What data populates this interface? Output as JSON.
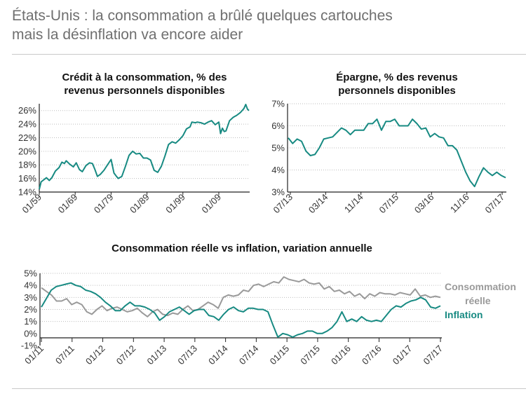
{
  "header": {
    "title_line1": "États-Unis : la consommation a brûlé quelques cartouches",
    "title_line2": "mais la désinflation va encore aider"
  },
  "colors": {
    "teal": "#178a82",
    "grey": "#9a9a9a"
  },
  "chart_data": [
    {
      "type": "line",
      "title_line1": "Crédit à la consommation, % des",
      "title_line2": "revenus personnels disponibles",
      "ylim": [
        14,
        27
      ],
      "y_ticks": [
        14,
        16,
        18,
        20,
        22,
        24,
        26
      ],
      "y_tick_labels": [
        "14%",
        "16%",
        "18%",
        "20%",
        "22%",
        "24%",
        "26%"
      ],
      "x_tick_labels": [
        "01/59",
        "01/69",
        "01/79",
        "01/89",
        "01/99",
        "01/09"
      ],
      "x_tick_years": [
        1959,
        1969,
        1979,
        1989,
        1999,
        2009
      ],
      "xlim": [
        1959,
        2017.6
      ],
      "series": [
        {
          "name": "Crédit à la consommation",
          "color": "#178a82",
          "x": [
            1959,
            1959.5,
            1961,
            1961.8,
            1962.5,
            1963.5,
            1964.5,
            1965.3,
            1966,
            1966.5,
            1967.5,
            1968.5,
            1969.3,
            1970.2,
            1971,
            1972,
            1973,
            1973.8,
            1974.5,
            1975.2,
            1976,
            1977,
            1978,
            1979,
            1979.8,
            1980.5,
            1981,
            1982,
            1983,
            1984,
            1985,
            1986,
            1987,
            1988,
            1989,
            1990,
            1991,
            1992,
            1993,
            1994,
            1995,
            1996,
            1997,
            1998,
            1999,
            2000,
            2001,
            2001.5,
            2002.5,
            2003,
            2004,
            2005,
            2006,
            2007,
            2008,
            2009,
            2009.5,
            2010,
            2010.5,
            2011,
            2012,
            2013,
            2014,
            2015,
            2016,
            2016.5,
            2017,
            2017.4
          ],
          "values": [
            14.4,
            15.5,
            16.1,
            15.7,
            16.1,
            17.1,
            17.6,
            18.4,
            18.2,
            18.6,
            18.1,
            17.7,
            18.3,
            17.3,
            17.0,
            17.9,
            18.3,
            18.2,
            17.3,
            16.3,
            16.6,
            17.2,
            18.0,
            18.8,
            16.8,
            16.3,
            16.0,
            16.3,
            17.8,
            19.4,
            20.0,
            19.6,
            19.7,
            19.0,
            19.0,
            18.7,
            17.2,
            16.9,
            17.8,
            19.3,
            21.0,
            21.4,
            21.2,
            21.7,
            22.3,
            23.3,
            23.6,
            24.3,
            24.2,
            24.3,
            24.2,
            24.0,
            24.3,
            24.5,
            23.9,
            24.3,
            22.6,
            23.4,
            22.9,
            23.0,
            24.5,
            25.0,
            25.3,
            25.7,
            26.3,
            26.9,
            26.2,
            26.0
          ]
        }
      ]
    },
    {
      "type": "line",
      "title_line1": "Épargne, % des revenus",
      "title_line2": "personnels disponibles",
      "ylim": [
        3,
        7
      ],
      "y_ticks": [
        3,
        4,
        5,
        6,
        7
      ],
      "y_tick_labels": [
        "3%",
        "4%",
        "5%",
        "6%",
        "7%"
      ],
      "x_tick_labels": [
        "07/13",
        "03/14",
        "11/14",
        "07/15",
        "03/16",
        "11/16",
        "07/17"
      ],
      "series": [
        {
          "name": "Épargne",
          "color": "#178a82",
          "values": [
            5.45,
            5.2,
            5.4,
            5.3,
            4.85,
            4.65,
            4.7,
            5.0,
            5.4,
            5.45,
            5.5,
            5.7,
            5.9,
            5.8,
            5.6,
            5.8,
            5.8,
            5.8,
            6.1,
            6.1,
            6.3,
            5.8,
            6.2,
            6.2,
            6.3,
            6.0,
            6.0,
            6.0,
            6.3,
            6.1,
            5.85,
            5.9,
            5.5,
            5.65,
            5.5,
            5.45,
            5.1,
            5.1,
            4.9,
            4.4,
            3.9,
            3.5,
            3.25,
            3.7,
            4.1,
            3.9,
            3.75,
            3.9,
            3.75,
            3.65
          ]
        }
      ]
    },
    {
      "type": "line",
      "title": "Consommation réelle vs inflation, variation annuelle",
      "ylim": [
        -1,
        5
      ],
      "y_ticks": [
        -1,
        0,
        1,
        2,
        3,
        4,
        5
      ],
      "y_tick_labels": [
        "-1%",
        "0%",
        "1%",
        "2%",
        "3%",
        "4%",
        "5%"
      ],
      "x_tick_labels": [
        "01/11",
        "07/11",
        "01/12",
        "07/12",
        "01/13",
        "07/13",
        "01/14",
        "07/14",
        "01/15",
        "07/15",
        "01/16",
        "07/16",
        "01/17",
        "07/17"
      ],
      "series": [
        {
          "name": "Consommation réelle",
          "legend_line1": "Consommation",
          "legend_line2": "réelle",
          "color": "#9a9a9a",
          "values": [
            3.8,
            3.5,
            3.2,
            2.7,
            2.7,
            2.9,
            2.4,
            2.6,
            2.4,
            1.8,
            1.6,
            2.0,
            2.3,
            1.9,
            2.1,
            2.2,
            2.0,
            1.8,
            1.9,
            2.1,
            1.7,
            1.4,
            1.8,
            2.0,
            1.6,
            1.5,
            1.7,
            1.6,
            2.0,
            2.3,
            1.9,
            2.0,
            2.3,
            2.6,
            2.4,
            2.1,
            3.0,
            3.2,
            3.1,
            3.2,
            3.6,
            3.5,
            4.0,
            4.1,
            3.9,
            4.1,
            4.3,
            4.2,
            4.7,
            4.5,
            4.4,
            4.3,
            4.5,
            4.2,
            4.1,
            4.2,
            3.7,
            3.9,
            3.5,
            3.6,
            3.3,
            3.5,
            3.1,
            3.3,
            2.9,
            3.3,
            3.1,
            3.4,
            3.3,
            3.3,
            3.2,
            3.4,
            3.3,
            3.2,
            3.7,
            3.1,
            3.2,
            3.0,
            3.1,
            3.0
          ]
        },
        {
          "name": "Inflation",
          "legend_line1": "Inflation",
          "color": "#178a82",
          "values": [
            2.2,
            2.9,
            3.6,
            3.9,
            4.0,
            4.1,
            4.2,
            4.0,
            3.9,
            3.6,
            3.5,
            3.3,
            3.0,
            2.6,
            2.3,
            1.9,
            1.9,
            2.3,
            2.6,
            2.3,
            2.3,
            2.2,
            2.0,
            1.7,
            1.1,
            1.4,
            1.8,
            2.0,
            2.2,
            1.9,
            1.6,
            1.9,
            2.0,
            2.0,
            1.5,
            1.4,
            1.1,
            1.6,
            2.0,
            2.2,
            1.9,
            1.8,
            2.1,
            2.1,
            2.0,
            2.0,
            1.8,
            0.7,
            -0.3,
            0.0,
            -0.1,
            -0.3,
            -0.1,
            0.0,
            0.2,
            0.2,
            0.0,
            0.0,
            0.2,
            0.5,
            1.0,
            1.8,
            1.0,
            1.2,
            1.0,
            1.4,
            1.1,
            1.0,
            1.1,
            1.0,
            1.5,
            2.0,
            2.3,
            2.2,
            2.5,
            2.7,
            2.8,
            3.0,
            2.8,
            2.2,
            2.1,
            2.3
          ]
        }
      ]
    }
  ]
}
